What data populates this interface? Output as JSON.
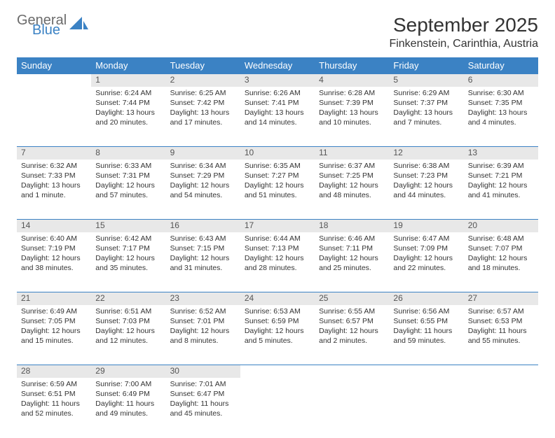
{
  "logo": {
    "general": "General",
    "blue": "Blue"
  },
  "header": {
    "title": "September 2025",
    "location": "Finkenstein, Carinthia, Austria"
  },
  "colors": {
    "brand": "#3b82c4",
    "header_bg": "#3b82c4",
    "daynum_bg": "#e8e8e8",
    "text": "#333333",
    "logo_gray": "#6b6b6b"
  },
  "weekdays": [
    "Sunday",
    "Monday",
    "Tuesday",
    "Wednesday",
    "Thursday",
    "Friday",
    "Saturday"
  ],
  "weeks": [
    [
      {
        "day": "",
        "lines": []
      },
      {
        "day": "1",
        "lines": [
          "Sunrise: 6:24 AM",
          "Sunset: 7:44 PM",
          "Daylight: 13 hours and 20 minutes."
        ]
      },
      {
        "day": "2",
        "lines": [
          "Sunrise: 6:25 AM",
          "Sunset: 7:42 PM",
          "Daylight: 13 hours and 17 minutes."
        ]
      },
      {
        "day": "3",
        "lines": [
          "Sunrise: 6:26 AM",
          "Sunset: 7:41 PM",
          "Daylight: 13 hours and 14 minutes."
        ]
      },
      {
        "day": "4",
        "lines": [
          "Sunrise: 6:28 AM",
          "Sunset: 7:39 PM",
          "Daylight: 13 hours and 10 minutes."
        ]
      },
      {
        "day": "5",
        "lines": [
          "Sunrise: 6:29 AM",
          "Sunset: 7:37 PM",
          "Daylight: 13 hours and 7 minutes."
        ]
      },
      {
        "day": "6",
        "lines": [
          "Sunrise: 6:30 AM",
          "Sunset: 7:35 PM",
          "Daylight: 13 hours and 4 minutes."
        ]
      }
    ],
    [
      {
        "day": "7",
        "lines": [
          "Sunrise: 6:32 AM",
          "Sunset: 7:33 PM",
          "Daylight: 13 hours and 1 minute."
        ]
      },
      {
        "day": "8",
        "lines": [
          "Sunrise: 6:33 AM",
          "Sunset: 7:31 PM",
          "Daylight: 12 hours and 57 minutes."
        ]
      },
      {
        "day": "9",
        "lines": [
          "Sunrise: 6:34 AM",
          "Sunset: 7:29 PM",
          "Daylight: 12 hours and 54 minutes."
        ]
      },
      {
        "day": "10",
        "lines": [
          "Sunrise: 6:35 AM",
          "Sunset: 7:27 PM",
          "Daylight: 12 hours and 51 minutes."
        ]
      },
      {
        "day": "11",
        "lines": [
          "Sunrise: 6:37 AM",
          "Sunset: 7:25 PM",
          "Daylight: 12 hours and 48 minutes."
        ]
      },
      {
        "day": "12",
        "lines": [
          "Sunrise: 6:38 AM",
          "Sunset: 7:23 PM",
          "Daylight: 12 hours and 44 minutes."
        ]
      },
      {
        "day": "13",
        "lines": [
          "Sunrise: 6:39 AM",
          "Sunset: 7:21 PM",
          "Daylight: 12 hours and 41 minutes."
        ]
      }
    ],
    [
      {
        "day": "14",
        "lines": [
          "Sunrise: 6:40 AM",
          "Sunset: 7:19 PM",
          "Daylight: 12 hours and 38 minutes."
        ]
      },
      {
        "day": "15",
        "lines": [
          "Sunrise: 6:42 AM",
          "Sunset: 7:17 PM",
          "Daylight: 12 hours and 35 minutes."
        ]
      },
      {
        "day": "16",
        "lines": [
          "Sunrise: 6:43 AM",
          "Sunset: 7:15 PM",
          "Daylight: 12 hours and 31 minutes."
        ]
      },
      {
        "day": "17",
        "lines": [
          "Sunrise: 6:44 AM",
          "Sunset: 7:13 PM",
          "Daylight: 12 hours and 28 minutes."
        ]
      },
      {
        "day": "18",
        "lines": [
          "Sunrise: 6:46 AM",
          "Sunset: 7:11 PM",
          "Daylight: 12 hours and 25 minutes."
        ]
      },
      {
        "day": "19",
        "lines": [
          "Sunrise: 6:47 AM",
          "Sunset: 7:09 PM",
          "Daylight: 12 hours and 22 minutes."
        ]
      },
      {
        "day": "20",
        "lines": [
          "Sunrise: 6:48 AM",
          "Sunset: 7:07 PM",
          "Daylight: 12 hours and 18 minutes."
        ]
      }
    ],
    [
      {
        "day": "21",
        "lines": [
          "Sunrise: 6:49 AM",
          "Sunset: 7:05 PM",
          "Daylight: 12 hours and 15 minutes."
        ]
      },
      {
        "day": "22",
        "lines": [
          "Sunrise: 6:51 AM",
          "Sunset: 7:03 PM",
          "Daylight: 12 hours and 12 minutes."
        ]
      },
      {
        "day": "23",
        "lines": [
          "Sunrise: 6:52 AM",
          "Sunset: 7:01 PM",
          "Daylight: 12 hours and 8 minutes."
        ]
      },
      {
        "day": "24",
        "lines": [
          "Sunrise: 6:53 AM",
          "Sunset: 6:59 PM",
          "Daylight: 12 hours and 5 minutes."
        ]
      },
      {
        "day": "25",
        "lines": [
          "Sunrise: 6:55 AM",
          "Sunset: 6:57 PM",
          "Daylight: 12 hours and 2 minutes."
        ]
      },
      {
        "day": "26",
        "lines": [
          "Sunrise: 6:56 AM",
          "Sunset: 6:55 PM",
          "Daylight: 11 hours and 59 minutes."
        ]
      },
      {
        "day": "27",
        "lines": [
          "Sunrise: 6:57 AM",
          "Sunset: 6:53 PM",
          "Daylight: 11 hours and 55 minutes."
        ]
      }
    ],
    [
      {
        "day": "28",
        "lines": [
          "Sunrise: 6:59 AM",
          "Sunset: 6:51 PM",
          "Daylight: 11 hours and 52 minutes."
        ]
      },
      {
        "day": "29",
        "lines": [
          "Sunrise: 7:00 AM",
          "Sunset: 6:49 PM",
          "Daylight: 11 hours and 49 minutes."
        ]
      },
      {
        "day": "30",
        "lines": [
          "Sunrise: 7:01 AM",
          "Sunset: 6:47 PM",
          "Daylight: 11 hours and 45 minutes."
        ]
      },
      {
        "day": "",
        "lines": []
      },
      {
        "day": "",
        "lines": []
      },
      {
        "day": "",
        "lines": []
      },
      {
        "day": "",
        "lines": []
      }
    ]
  ]
}
